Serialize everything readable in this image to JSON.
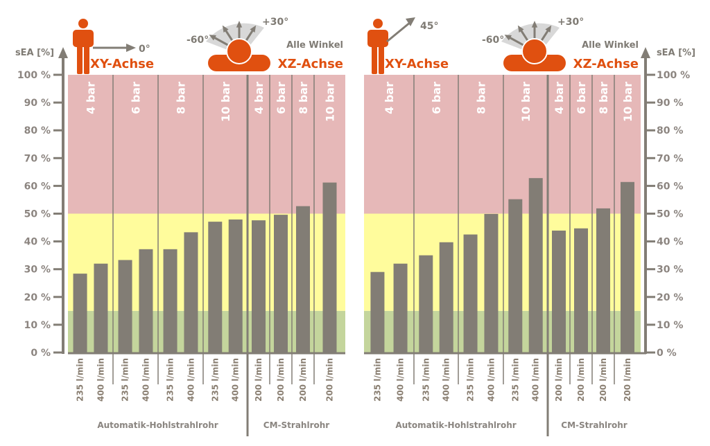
{
  "colors": {
    "bar": "#827d75",
    "axis": "#827d75",
    "zone_red": "#e6b8b8",
    "zone_yellow": "#fffc9c",
    "zone_green": "#c4d59c",
    "accent": "#e05010",
    "arc": "#d8d8d8"
  },
  "chart_data": [
    {
      "type": "bar",
      "title": "",
      "ylabel": "sEA [%]",
      "ylim": [
        0,
        100
      ],
      "yticks": [
        "0 %",
        "10 %",
        "20 %",
        "30 %",
        "40 %",
        "50 %",
        "60 %",
        "70 %",
        "80 %",
        "90 %",
        "100 %"
      ],
      "zones": [
        {
          "name": "green",
          "from": 0,
          "to": 15
        },
        {
          "name": "yellow",
          "from": 15,
          "to": 50
        },
        {
          "name": "red",
          "from": 50,
          "to": 100
        }
      ],
      "header": {
        "xy_axis_label": "XY-Achse",
        "xy_angle": "0°",
        "xz_axis_label": "XZ-Achse",
        "xz_angle_min": "-60°",
        "xz_angle_max": "+30°",
        "xz_note": "Alle Winkel"
      },
      "nozzles": [
        {
          "name": "Automatik-Hohlstrahlrohr",
          "pressure_groups": [
            {
              "pressure": "4 bar",
              "bars": [
                {
                  "flow": "235 l/min",
                  "value": 28.4
                },
                {
                  "flow": "400 l/min",
                  "value": 32.0
                }
              ]
            },
            {
              "pressure": "6 bar",
              "bars": [
                {
                  "flow": "235 l/min",
                  "value": 33.3
                },
                {
                  "flow": "400 l/min",
                  "value": 37.2
                }
              ]
            },
            {
              "pressure": "8 bar",
              "bars": [
                {
                  "flow": "235 l/min",
                  "value": 37.2
                },
                {
                  "flow": "400 l/min",
                  "value": 43.3
                }
              ]
            },
            {
              "pressure": "10 bar",
              "bars": [
                {
                  "flow": "235 l/min",
                  "value": 47.1
                },
                {
                  "flow": "400 l/min",
                  "value": 47.9
                }
              ]
            }
          ]
        },
        {
          "name": "CM-Strahlrohr",
          "pressure_groups": [
            {
              "pressure": "4 bar",
              "bars": [
                {
                  "flow": "200 l/min",
                  "value": 47.6
                }
              ]
            },
            {
              "pressure": "6 bar",
              "bars": [
                {
                  "flow": "200 l/min",
                  "value": 49.6
                }
              ]
            },
            {
              "pressure": "8 bar",
              "bars": [
                {
                  "flow": "200 l/min",
                  "value": 52.7
                }
              ]
            },
            {
              "pressure": "10 bar",
              "bars": [
                {
                  "flow": "200 l/min",
                  "value": 61.2
                }
              ]
            }
          ]
        }
      ]
    },
    {
      "type": "bar",
      "title": "",
      "ylabel": "sEA [%]",
      "ylim": [
        0,
        100
      ],
      "yticks": [
        "0 %",
        "10 %",
        "20 %",
        "30 %",
        "40 %",
        "50 %",
        "60 %",
        "70 %",
        "80 %",
        "90 %",
        "100 %"
      ],
      "zones": [
        {
          "name": "green",
          "from": 0,
          "to": 15
        },
        {
          "name": "yellow",
          "from": 15,
          "to": 50
        },
        {
          "name": "red",
          "from": 50,
          "to": 100
        }
      ],
      "header": {
        "xy_axis_label": "XY-Achse",
        "xy_angle": "45°",
        "xz_axis_label": "XZ-Achse",
        "xz_angle_min": "-60°",
        "xz_angle_max": "+30°",
        "xz_note": "Alle Winkel"
      },
      "nozzles": [
        {
          "name": "Automatik-Hohlstrahlrohr",
          "pressure_groups": [
            {
              "pressure": "4 bar",
              "bars": [
                {
                  "flow": "235 l/min",
                  "value": 29.0
                },
                {
                  "flow": "400 l/min",
                  "value": 32.0
                }
              ]
            },
            {
              "pressure": "6 bar",
              "bars": [
                {
                  "flow": "235 l/min",
                  "value": 35.0
                },
                {
                  "flow": "400 l/min",
                  "value": 39.7
                }
              ]
            },
            {
              "pressure": "8 bar",
              "bars": [
                {
                  "flow": "235 l/min",
                  "value": 42.5
                },
                {
                  "flow": "400 l/min",
                  "value": 49.9
                }
              ]
            },
            {
              "pressure": "10 bar",
              "bars": [
                {
                  "flow": "235 l/min",
                  "value": 55.2
                },
                {
                  "flow": "400 l/min",
                  "value": 62.8
                }
              ]
            }
          ]
        },
        {
          "name": "CM-Strahlrohr",
          "pressure_groups": [
            {
              "pressure": "4 bar",
              "bars": [
                {
                  "flow": "200 l/min",
                  "value": 43.9
                }
              ]
            },
            {
              "pressure": "6 bar",
              "bars": [
                {
                  "flow": "200 l/min",
                  "value": 44.7
                }
              ]
            },
            {
              "pressure": "8 bar",
              "bars": [
                {
                  "flow": "200 l/min",
                  "value": 51.9
                }
              ]
            },
            {
              "pressure": "10 bar",
              "bars": [
                {
                  "flow": "200 l/min",
                  "value": 61.4
                }
              ]
            }
          ]
        }
      ]
    }
  ]
}
